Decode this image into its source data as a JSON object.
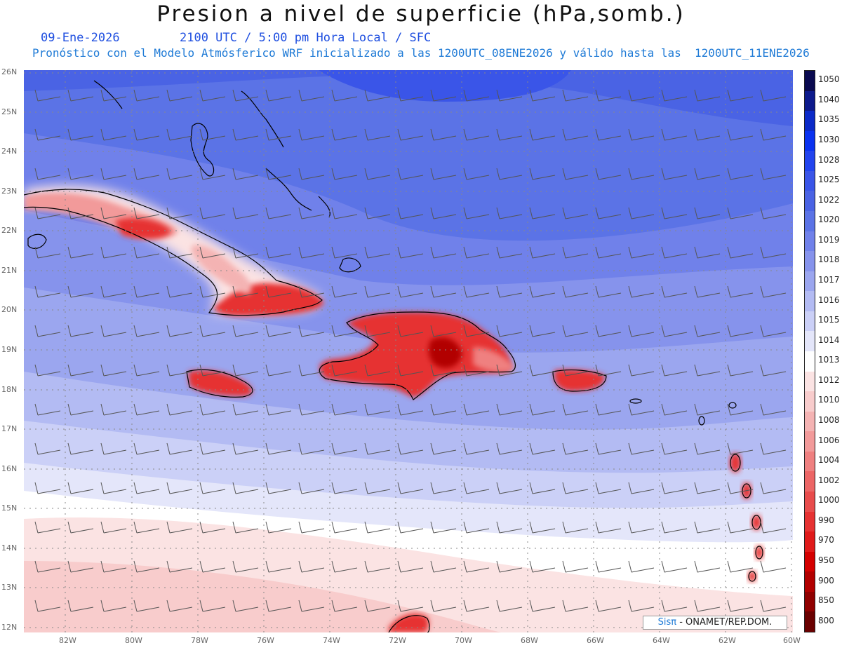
{
  "header": {
    "title": "Presion a nivel de superficie (hPa,somb.)",
    "date": "09-Ene-2026",
    "time": "2100 UTC / 5:00 pm Hora Local / SFC",
    "subtitle": "Pronóstico con el Modelo Atmósferico WRF inicializado a las 1200UTC_08ENE2026 y válido hasta las  1200UTC_11ENE2026"
  },
  "axes": {
    "lon_labels": [
      "82W",
      "80W",
      "78W",
      "76W",
      "74W",
      "72W",
      "70W",
      "68W",
      "66W",
      "64W",
      "62W",
      "60W"
    ],
    "lat_labels": [
      "26N",
      "25N",
      "24N",
      "23N",
      "22N",
      "21N",
      "20N",
      "19N",
      "18N",
      "17N",
      "16N",
      "15N",
      "14N",
      "13N",
      "12N"
    ]
  },
  "colorbar": {
    "levels": [
      "1050",
      "1040",
      "1035",
      "1030",
      "1028",
      "1025",
      "1022",
      "1020",
      "1019",
      "1018",
      "1017",
      "1016",
      "1015",
      "1014",
      "1013",
      "1012",
      "1010",
      "1008",
      "1006",
      "1004",
      "1002",
      "1000",
      "990",
      "970",
      "950",
      "900",
      "850",
      "800"
    ],
    "colors": [
      "#0a0a50",
      "#0d1a8c",
      "#0b2ac8",
      "#0a32f0",
      "#2244ee",
      "#3a55e8",
      "#4a63e4",
      "#5b73e6",
      "#7081ea",
      "#8693ec",
      "#9ba6ef",
      "#b3bbf3",
      "#cbd0f7",
      "#e4e6fa",
      "#ffffff",
      "#fbe3e3",
      "#f8cccc",
      "#f4b3b3",
      "#f29a9a",
      "#ef8080",
      "#ec6666",
      "#e84c4c",
      "#e63232",
      "#e01a1a",
      "#d40000",
      "#b20000",
      "#900000",
      "#6a0000"
    ]
  },
  "credit": {
    "brand": "Sisπ",
    "org": "- ONAMET/REP.DOM."
  }
}
